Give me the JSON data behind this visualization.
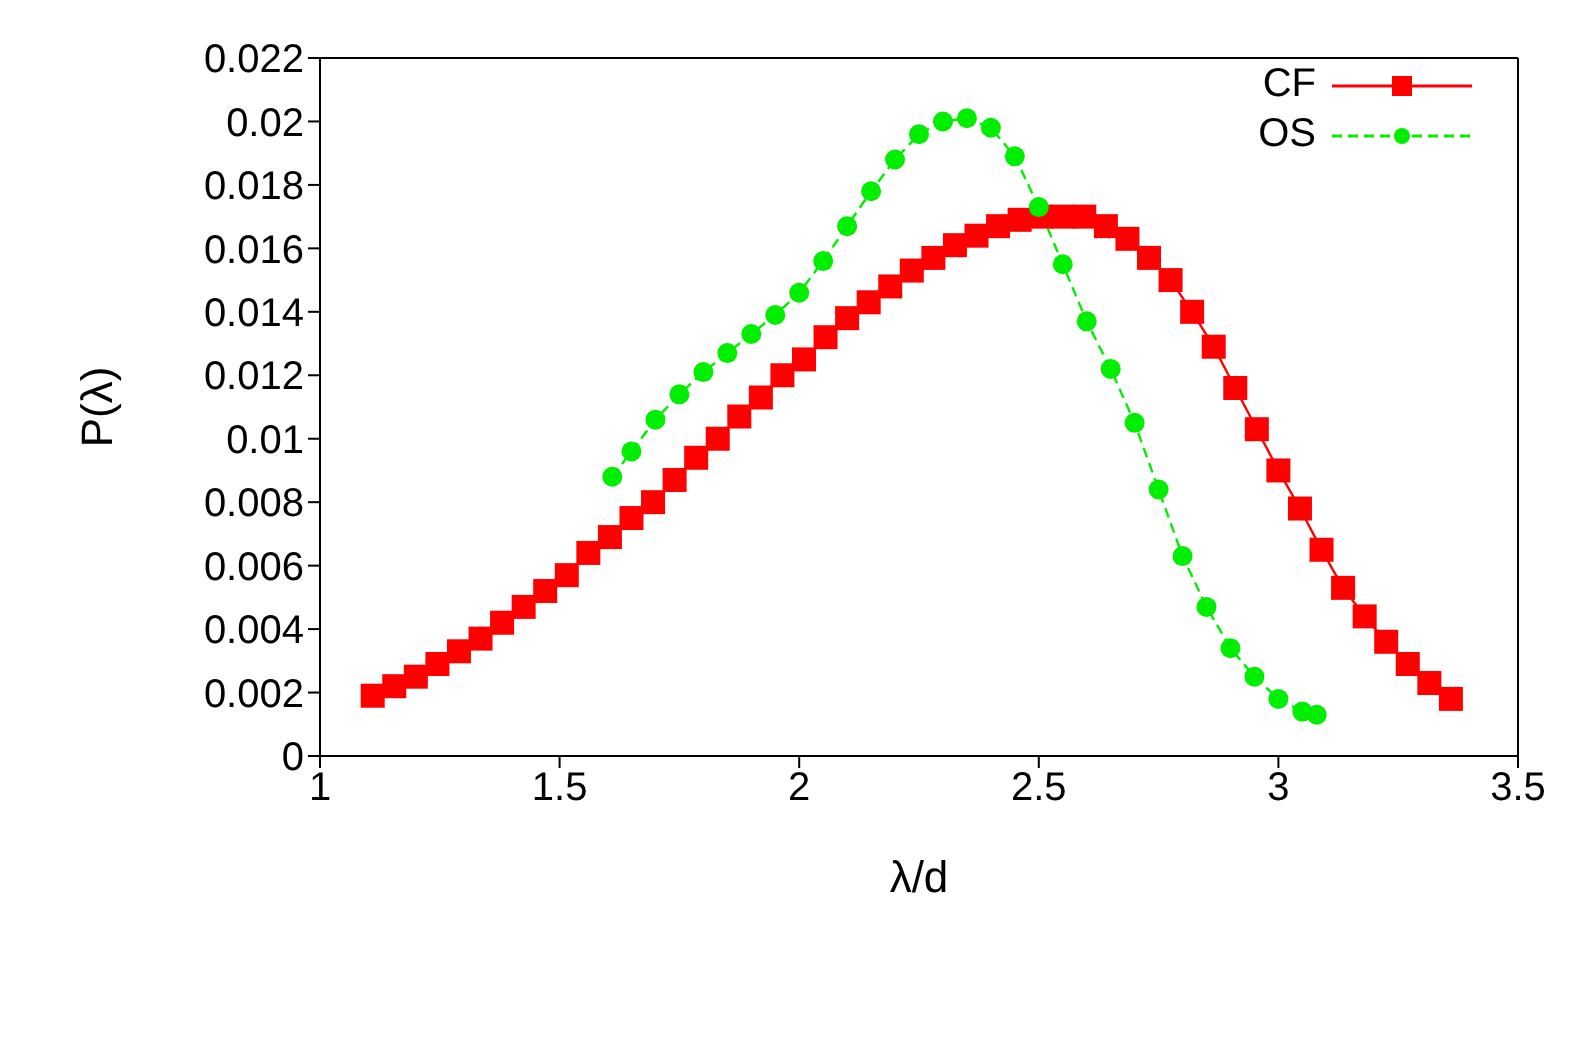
{
  "chart_data": {
    "type": "line",
    "xlabel": "λ/d",
    "ylabel": "P(λ)",
    "xlim": [
      1,
      3.5
    ],
    "xticks": [
      1,
      1.5,
      2,
      2.5,
      3,
      3.5
    ],
    "ylim": [
      0,
      0.022
    ],
    "yticks": [
      0,
      0.002,
      0.004,
      0.006,
      0.008,
      0.01,
      0.012,
      0.014,
      0.016,
      0.018,
      0.02,
      0.022
    ],
    "legend": "top right",
    "series": [
      {
        "name": "CF",
        "color": "#ff0000",
        "marker": "square",
        "line_style": "solid",
        "x": [
          1.11,
          1.155,
          1.2,
          1.245,
          1.29,
          1.335,
          1.38,
          1.425,
          1.47,
          1.515,
          1.56,
          1.605,
          1.65,
          1.695,
          1.74,
          1.785,
          1.83,
          1.875,
          1.92,
          1.965,
          2.01,
          2.055,
          2.1,
          2.145,
          2.19,
          2.235,
          2.28,
          2.325,
          2.37,
          2.415,
          2.46,
          2.505,
          2.55,
          2.595,
          2.64,
          2.685,
          2.73,
          2.775,
          2.82,
          2.865,
          2.91,
          2.955,
          3,
          3.045,
          3.09,
          3.135,
          3.18,
          3.225,
          3.27,
          3.315,
          3.36
        ],
        "values": [
          0.0019,
          0.0022,
          0.0025,
          0.0029,
          0.0033,
          0.0037,
          0.0042,
          0.0047,
          0.0052,
          0.0057,
          0.0064,
          0.0069,
          0.0075,
          0.008,
          0.0087,
          0.0094,
          0.01,
          0.0107,
          0.0113,
          0.012,
          0.0125,
          0.0132,
          0.0138,
          0.0143,
          0.0148,
          0.0153,
          0.0157,
          0.0161,
          0.0164,
          0.0167,
          0.0169,
          0.017,
          0.017,
          0.017,
          0.0167,
          0.0163,
          0.0157,
          0.015,
          0.014,
          0.0129,
          0.0116,
          0.0103,
          0.009,
          0.0078,
          0.0065,
          0.0053,
          0.0044,
          0.0036,
          0.0029,
          0.0023,
          0.0018
        ]
      },
      {
        "name": "OS",
        "color": "#00ee00",
        "marker": "circle",
        "line_style": "dashed",
        "x": [
          1.61,
          1.65,
          1.7,
          1.75,
          1.8,
          1.85,
          1.9,
          1.95,
          2,
          2.05,
          2.1,
          2.15,
          2.2,
          2.25,
          2.3,
          2.35,
          2.4,
          2.45,
          2.5,
          2.55,
          2.6,
          2.65,
          2.7,
          2.75,
          2.8,
          2.85,
          2.9,
          2.95,
          3,
          3.05,
          3.08
        ],
        "values": [
          0.0088,
          0.0096,
          0.0106,
          0.0114,
          0.0121,
          0.0127,
          0.0133,
          0.0139,
          0.0146,
          0.0156,
          0.0167,
          0.0178,
          0.0188,
          0.0196,
          0.02,
          0.0201,
          0.0198,
          0.0189,
          0.0173,
          0.0155,
          0.0137,
          0.0122,
          0.0105,
          0.0084,
          0.0063,
          0.0047,
          0.0034,
          0.0025,
          0.0018,
          0.0014,
          0.0013
        ]
      }
    ]
  }
}
